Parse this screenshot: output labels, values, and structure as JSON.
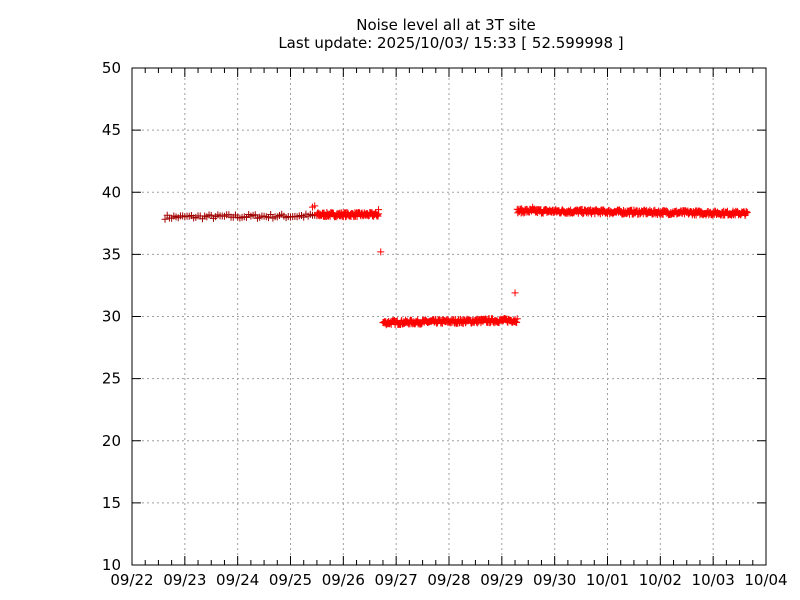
{
  "chart_data": {
    "type": "scatter",
    "title": "Noise level all at 3T site",
    "subtitle": "Last update: 2025/10/03/ 15:33 [ 52.599998 ]",
    "xlabel": "",
    "ylabel": "",
    "x_tick_labels": [
      "09/22",
      "09/23",
      "09/24",
      "09/25",
      "09/26",
      "09/27",
      "09/28",
      "09/29",
      "09/30",
      "10/01",
      "10/02",
      "10/03",
      "10/04"
    ],
    "xlim": [
      "09/22",
      "10/04"
    ],
    "y_ticks": [
      10,
      15,
      20,
      25,
      30,
      35,
      40,
      45,
      50
    ],
    "ylim": [
      10,
      50
    ],
    "grid": true,
    "legend": "none",
    "marker": "plus",
    "colors": {
      "point": "#ff0000",
      "point_early": "#a00000",
      "axis": "#000000",
      "grid": "#a0a0a0"
    },
    "segments": [
      {
        "x_start": "09/22 15:00",
        "x_end": "09/25 12:00",
        "y_start": 38.0,
        "y_end": 38.1,
        "density": "sparse"
      },
      {
        "x_start": "09/25 12:00",
        "x_end": "09/26 16:00",
        "y_start": 38.2,
        "y_end": 38.2,
        "density": "dense"
      },
      {
        "x_start": "09/26 18:00",
        "x_end": "09/29 07:00",
        "y_start": 29.5,
        "y_end": 29.7,
        "density": "dense"
      },
      {
        "x_start": "09/29 07:00",
        "x_end": "10/03 15:30",
        "y_start": 38.5,
        "y_end": 38.3,
        "density": "dense"
      }
    ],
    "outliers": [
      {
        "x": "09/25 10:00",
        "y": 38.8
      },
      {
        "x": "09/25 11:00",
        "y": 38.9
      },
      {
        "x": "09/26 16:00",
        "y": 38.6
      },
      {
        "x": "09/26 17:00",
        "y": 35.2
      },
      {
        "x": "09/29 06:00",
        "y": 31.9
      },
      {
        "x": "09/29 14:00",
        "y": 38.8
      }
    ]
  }
}
